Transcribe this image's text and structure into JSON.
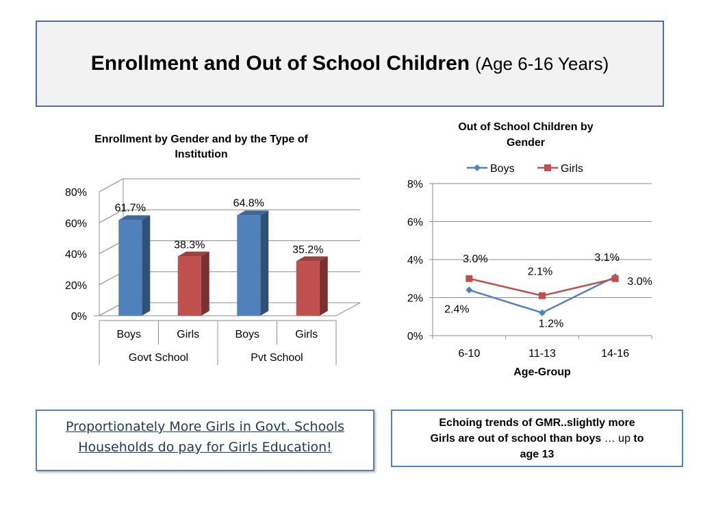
{
  "slide": {
    "title_main": "Enrollment and Out of School Children",
    "title_sub": "(Age 6-16 Years)"
  },
  "charts": {
    "left": {
      "title_line1": "Enrollment by Gender and by the Type of",
      "title_line2": "Institution"
    },
    "right": {
      "title_line1": "Out of School Children by",
      "title_line2": "Gender",
      "xlabel": "Age-Group"
    }
  },
  "chart_data": [
    {
      "type": "bar",
      "title": "Enrollment by Gender and by the Type of Institution",
      "categories": [
        "Boys",
        "Girls",
        "Boys",
        "Girls"
      ],
      "groups": [
        "Govt School",
        "Pvt School"
      ],
      "values": [
        61.7,
        38.3,
        64.8,
        35.2
      ],
      "value_labels": [
        "61.7%",
        "38.3%",
        "64.8%",
        "35.2%"
      ],
      "colors": [
        "#4f81bd",
        "#c0504d",
        "#4f81bd",
        "#c0504d"
      ],
      "ylim": [
        0,
        80
      ],
      "yticks": [
        "0%",
        "20%",
        "40%",
        "60%",
        "80%"
      ],
      "grid": true,
      "style": "3d"
    },
    {
      "type": "line",
      "title": "Out of School Children by Gender",
      "x": [
        "6-10",
        "11-13",
        "14-16"
      ],
      "xlabel": "Age-Group",
      "series": [
        {
          "name": "Boys",
          "color": "#4f81bd",
          "marker": "diamond",
          "values": [
            2.4,
            1.2,
            3.1
          ],
          "labels": [
            "2.4%",
            "1.2%",
            "3.1%"
          ]
        },
        {
          "name": "Girls",
          "color": "#c0504d",
          "marker": "square",
          "values": [
            3.0,
            2.1,
            3.0
          ],
          "labels": [
            "3.0%",
            "2.1%",
            "3.0%"
          ]
        }
      ],
      "ylim": [
        0,
        8
      ],
      "yticks": [
        "0%",
        "2%",
        "4%",
        "6%",
        "8%"
      ],
      "legend": "top",
      "grid": true
    }
  ],
  "notes": {
    "left_line1": "Proportionately More Girls in Govt.  Schools",
    "left_line2": "Households do pay for Girls Education!",
    "right_part1": "Echoing trends of GMR..slightly more",
    "right_part2": "Girls  are out of school than boys",
    "right_part3": " … up ",
    "right_part4": "to",
    "right_part5": "age 13"
  }
}
